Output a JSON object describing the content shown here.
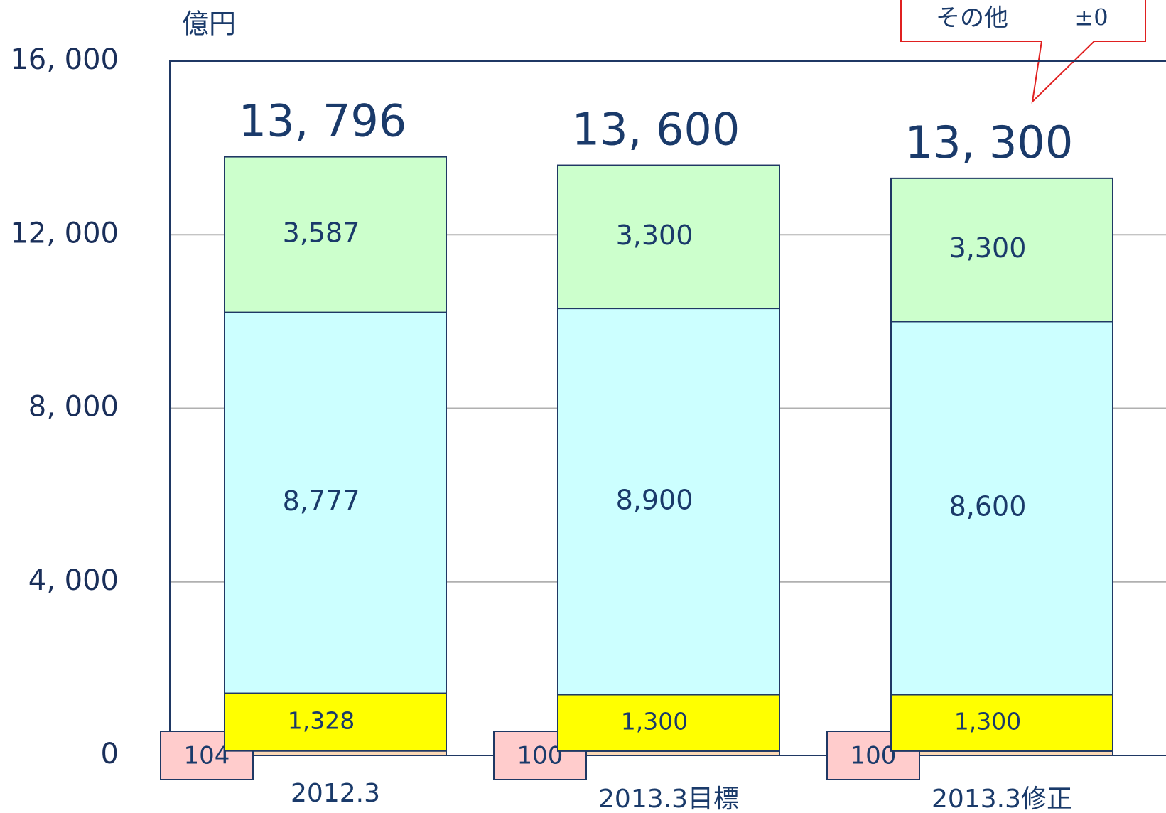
{
  "chart_data": {
    "type": "stacked_bar",
    "y_axis_label": "億円",
    "categories": [
      "2012.3",
      "2013.3目標",
      "2013.3修正"
    ],
    "series": [
      {
        "color": "#fcd9b6",
        "values": [
          104,
          100,
          100
        ]
      },
      {
        "color": "#ffff00",
        "values": [
          1328,
          1300,
          1300
        ],
        "value_labels": [
          "1,328",
          "1,300",
          "1,300"
        ]
      },
      {
        "color": "#ccffff",
        "values": [
          8777,
          8900,
          8600
        ],
        "value_labels": [
          "8,777",
          "8,900",
          "8,600"
        ]
      },
      {
        "color": "#ccffcc",
        "values": [
          3587,
          3300,
          3300
        ],
        "value_labels": [
          "3,587",
          "3,300",
          "3,300"
        ]
      }
    ],
    "totals": [
      13796,
      13600,
      13300
    ],
    "total_labels": [
      "13, 796",
      "13, 600",
      "13, 300"
    ],
    "annotation": {
      "label": "その他",
      "value": "±0"
    },
    "ylim": [
      0,
      16000
    ],
    "yticks": [
      0,
      {
        "value": 4000,
        "label": "4, 000"
      },
      {
        "value": 8000,
        "label": "8, 000"
      },
      {
        "value": 12000,
        "label": "12, 000"
      },
      {
        "value": 16000,
        "label": "16, 000"
      }
    ],
    "grid": true
  }
}
